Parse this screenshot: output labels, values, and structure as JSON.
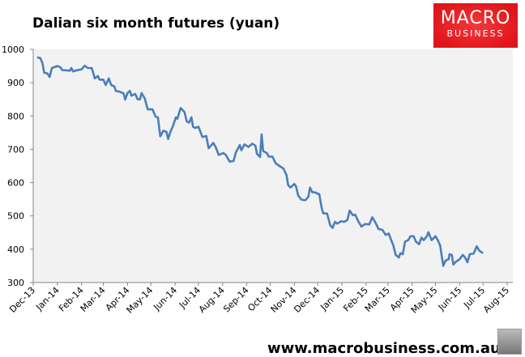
{
  "header": {
    "title": "Dalian six month futures (yuan)"
  },
  "logo": {
    "line1": "MACRO",
    "line2": "BUSINESS",
    "color": "#e0141b"
  },
  "footer": {
    "url": "www.macrobusiness.com.au",
    "icon": "wolf-icon"
  },
  "chart_data": {
    "type": "line",
    "title": "Dalian six month futures (yuan)",
    "xlabel": "",
    "ylabel": "",
    "ylim": [
      300,
      1000
    ],
    "yticks": [
      300,
      400,
      500,
      600,
      700,
      800,
      900,
      1000
    ],
    "xlim": [
      "2013-12-01",
      "2015-08-01"
    ],
    "xticks": [
      {
        "date": "2013-12-01",
        "label": "Dec-13"
      },
      {
        "date": "2014-01-01",
        "label": "Jan-14"
      },
      {
        "date": "2014-02-01",
        "label": "Feb-14"
      },
      {
        "date": "2014-03-01",
        "label": "Mar-14"
      },
      {
        "date": "2014-04-01",
        "label": "Apr-14"
      },
      {
        "date": "2014-05-01",
        "label": "May-14"
      },
      {
        "date": "2014-06-01",
        "label": "Jun-14"
      },
      {
        "date": "2014-07-01",
        "label": "Jul-14"
      },
      {
        "date": "2014-08-01",
        "label": "Aug-14"
      },
      {
        "date": "2014-09-01",
        "label": "Sep-14"
      },
      {
        "date": "2014-10-01",
        "label": "Oct-14"
      },
      {
        "date": "2014-11-01",
        "label": "Nov-14"
      },
      {
        "date": "2014-12-01",
        "label": "Dec-14"
      },
      {
        "date": "2015-01-01",
        "label": "Jan-15"
      },
      {
        "date": "2015-02-01",
        "label": "Feb-15"
      },
      {
        "date": "2015-03-01",
        "label": "Mar-15"
      },
      {
        "date": "2015-04-01",
        "label": "Apr-15"
      },
      {
        "date": "2015-05-01",
        "label": "May-15"
      },
      {
        "date": "2015-06-01",
        "label": "Jun-15"
      },
      {
        "date": "2015-07-01",
        "label": "Jul-15"
      },
      {
        "date": "2015-08-01",
        "label": "Aug-15"
      }
    ],
    "grid": false,
    "background": "#f2f2f2",
    "line_color": "#4a7ebb",
    "series": [
      {
        "points": [
          [
            "2013-12-06",
            976
          ],
          [
            "2013-12-10",
            974
          ],
          [
            "2013-12-13",
            958
          ],
          [
            "2013-12-15",
            930
          ],
          [
            "2013-12-19",
            928
          ],
          [
            "2013-12-22",
            917
          ],
          [
            "2013-12-25",
            944
          ],
          [
            "2014-01-01",
            950
          ],
          [
            "2014-01-05",
            946
          ],
          [
            "2014-01-07",
            938
          ],
          [
            "2014-01-17",
            936
          ],
          [
            "2014-01-19",
            944
          ],
          [
            "2014-01-21",
            934
          ],
          [
            "2014-01-27",
            938
          ],
          [
            "2014-02-01",
            940
          ],
          [
            "2014-02-05",
            951
          ],
          [
            "2014-02-09",
            944
          ],
          [
            "2014-02-14",
            944
          ],
          [
            "2014-02-18",
            913
          ],
          [
            "2014-02-22",
            920
          ],
          [
            "2014-02-24",
            909
          ],
          [
            "2014-03-01",
            909
          ],
          [
            "2014-03-04",
            893
          ],
          [
            "2014-03-08",
            913
          ],
          [
            "2014-03-11",
            893
          ],
          [
            "2014-03-15",
            889
          ],
          [
            "2014-03-17",
            875
          ],
          [
            "2014-03-22",
            873
          ],
          [
            "2014-03-27",
            868
          ],
          [
            "2014-03-29",
            849
          ],
          [
            "2014-04-01",
            869
          ],
          [
            "2014-04-04",
            875
          ],
          [
            "2014-04-06",
            861
          ],
          [
            "2014-04-11",
            866
          ],
          [
            "2014-04-14",
            850
          ],
          [
            "2014-04-17",
            850
          ],
          [
            "2014-04-19",
            869
          ],
          [
            "2014-04-23",
            853
          ],
          [
            "2014-04-27",
            820
          ],
          [
            "2014-05-03",
            820
          ],
          [
            "2014-05-07",
            798
          ],
          [
            "2014-05-10",
            796
          ],
          [
            "2014-05-13",
            739
          ],
          [
            "2014-05-17",
            756
          ],
          [
            "2014-05-21",
            752
          ],
          [
            "2014-05-23",
            731
          ],
          [
            "2014-05-26",
            752
          ],
          [
            "2014-05-29",
            768
          ],
          [
            "2014-06-02",
            796
          ],
          [
            "2014-06-04",
            792
          ],
          [
            "2014-06-08",
            824
          ],
          [
            "2014-06-13",
            812
          ],
          [
            "2014-06-16",
            784
          ],
          [
            "2014-06-19",
            780
          ],
          [
            "2014-06-22",
            796
          ],
          [
            "2014-06-24",
            768
          ],
          [
            "2014-06-27",
            764
          ],
          [
            "2014-07-01",
            768
          ],
          [
            "2014-07-06",
            737
          ],
          [
            "2014-07-11",
            740
          ],
          [
            "2014-07-14",
            703
          ],
          [
            "2014-07-20",
            719
          ],
          [
            "2014-07-23",
            707
          ],
          [
            "2014-07-27",
            683
          ],
          [
            "2014-08-02",
            689
          ],
          [
            "2014-08-05",
            683
          ],
          [
            "2014-08-10",
            663
          ],
          [
            "2014-08-15",
            665
          ],
          [
            "2014-08-18",
            691
          ],
          [
            "2014-08-23",
            713
          ],
          [
            "2014-08-25",
            697
          ],
          [
            "2014-08-29",
            715
          ],
          [
            "2014-09-03",
            707
          ],
          [
            "2014-09-08",
            717
          ],
          [
            "2014-09-12",
            711
          ],
          [
            "2014-09-14",
            687
          ],
          [
            "2014-09-18",
            677
          ],
          [
            "2014-09-20",
            745
          ],
          [
            "2014-09-22",
            695
          ],
          [
            "2014-09-27",
            688
          ],
          [
            "2014-09-29",
            678
          ],
          [
            "2014-10-04",
            678
          ],
          [
            "2014-10-08",
            658
          ],
          [
            "2014-10-13",
            650
          ],
          [
            "2014-10-18",
            642
          ],
          [
            "2014-10-22",
            622
          ],
          [
            "2014-10-24",
            593
          ],
          [
            "2014-10-27",
            585
          ],
          [
            "2014-11-01",
            596
          ],
          [
            "2014-11-03",
            589
          ],
          [
            "2014-11-06",
            561
          ],
          [
            "2014-11-10",
            549
          ],
          [
            "2014-11-15",
            547
          ],
          [
            "2014-11-19",
            557
          ],
          [
            "2014-11-21",
            585
          ],
          [
            "2014-11-24",
            571
          ],
          [
            "2014-11-27",
            571
          ],
          [
            "2014-12-03",
            565
          ],
          [
            "2014-12-06",
            524
          ],
          [
            "2014-12-08",
            508
          ],
          [
            "2014-12-13",
            507
          ],
          [
            "2014-12-17",
            472
          ],
          [
            "2014-12-20",
            464
          ],
          [
            "2014-12-23",
            482
          ],
          [
            "2014-12-26",
            477
          ],
          [
            "2014-12-31",
            484
          ],
          [
            "2015-01-04",
            482
          ],
          [
            "2015-01-08",
            488
          ],
          [
            "2015-01-11",
            516
          ],
          [
            "2015-01-15",
            502
          ],
          [
            "2015-01-18",
            504
          ],
          [
            "2015-01-22",
            484
          ],
          [
            "2015-01-26",
            468
          ],
          [
            "2015-01-31",
            476
          ],
          [
            "2015-02-05",
            474
          ],
          [
            "2015-02-09",
            496
          ],
          [
            "2015-02-13",
            480
          ],
          [
            "2015-02-17",
            461
          ],
          [
            "2015-02-22",
            458
          ],
          [
            "2015-02-26",
            443
          ],
          [
            "2015-03-02",
            447
          ],
          [
            "2015-03-04",
            435
          ],
          [
            "2015-03-08",
            411
          ],
          [
            "2015-03-11",
            383
          ],
          [
            "2015-03-15",
            375
          ],
          [
            "2015-03-17",
            388
          ],
          [
            "2015-03-20",
            385
          ],
          [
            "2015-03-23",
            423
          ],
          [
            "2015-03-27",
            427
          ],
          [
            "2015-03-30",
            439
          ],
          [
            "2015-04-03",
            439
          ],
          [
            "2015-04-06",
            423
          ],
          [
            "2015-04-10",
            415
          ],
          [
            "2015-04-13",
            435
          ],
          [
            "2015-04-16",
            427
          ],
          [
            "2015-04-20",
            439
          ],
          [
            "2015-04-22",
            451
          ],
          [
            "2015-04-26",
            427
          ],
          [
            "2015-05-01",
            439
          ],
          [
            "2015-05-04",
            427
          ],
          [
            "2015-05-07",
            411
          ],
          [
            "2015-05-11",
            350
          ],
          [
            "2015-05-14",
            366
          ],
          [
            "2015-05-18",
            370
          ],
          [
            "2015-05-19",
            385
          ],
          [
            "2015-05-22",
            383
          ],
          [
            "2015-05-24",
            354
          ],
          [
            "2015-05-27",
            362
          ],
          [
            "2015-06-01",
            370
          ],
          [
            "2015-06-05",
            383
          ],
          [
            "2015-06-08",
            375
          ],
          [
            "2015-06-11",
            361
          ],
          [
            "2015-06-14",
            385
          ],
          [
            "2015-06-19",
            387
          ],
          [
            "2015-06-23",
            409
          ],
          [
            "2015-06-26",
            396
          ],
          [
            "2015-07-01",
            388
          ]
        ]
      }
    ]
  }
}
